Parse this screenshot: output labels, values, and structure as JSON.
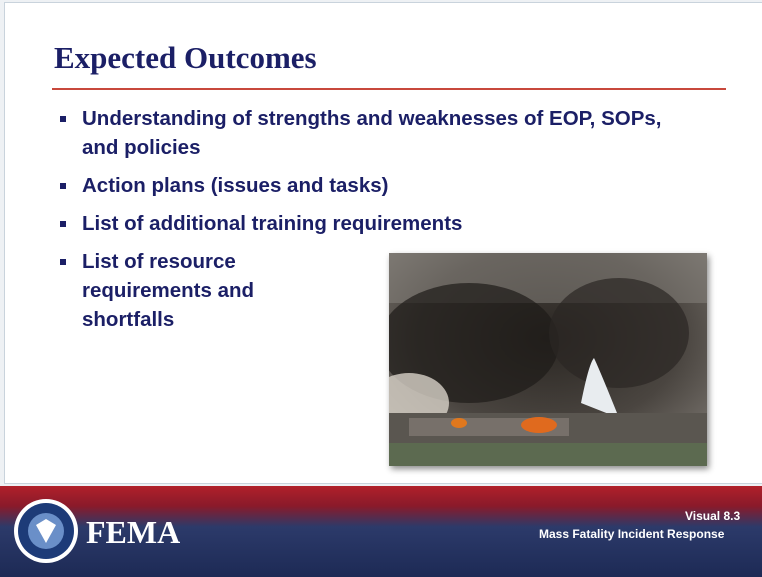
{
  "slide": {
    "title": "Expected Outcomes",
    "bullets": [
      "Understanding of strengths and weaknesses of EOP, SOPs, and policies",
      "Action plans (issues and tasks)",
      "List of additional training requirements",
      "List of resource requirements and shortfalls"
    ],
    "footer": {
      "logo": "FEMA",
      "visual": "Visual 8.3",
      "course": "Mass Fatality Incident Response"
    }
  }
}
